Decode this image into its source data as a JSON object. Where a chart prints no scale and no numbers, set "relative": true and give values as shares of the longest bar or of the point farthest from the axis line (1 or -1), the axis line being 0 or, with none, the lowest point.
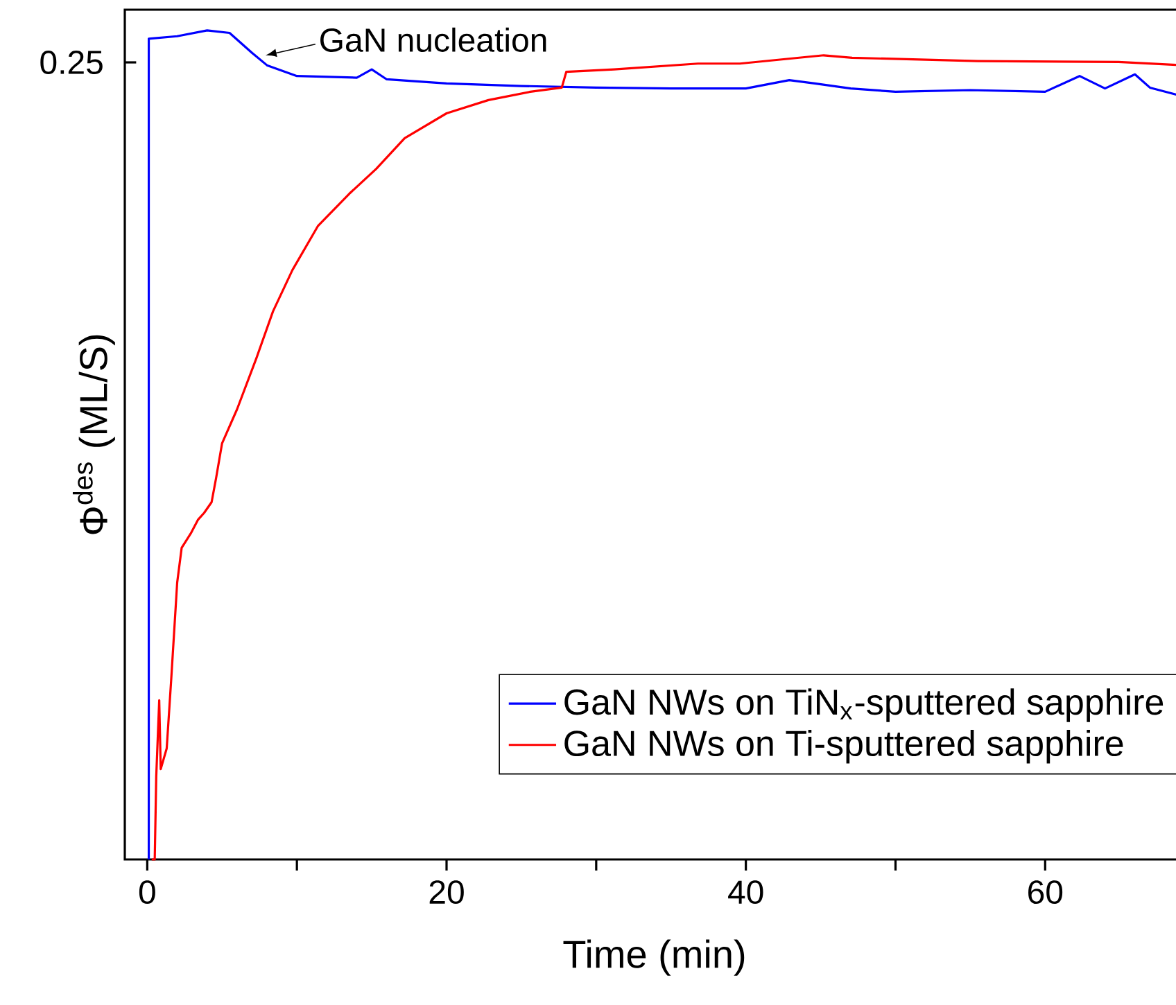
{
  "chart_data": {
    "type": "line",
    "relative": true,
    "xlabel": "Time (min)",
    "ylabel": "Φ$^{des}$ (ML/S)",
    "xlim": [
      -1.5,
      69.3
    ],
    "xticks": [
      0,
      {
        "value": 10,
        "label": null
      },
      20,
      {
        "value": 30,
        "label": null
      },
      40,
      {
        "value": 50,
        "label": null
      },
      60
    ],
    "legend": "bottom right",
    "marker": "none",
    "line_style": "solid",
    "annotations": [
      {
        "text": "GaN nucleation",
        "x": 7.9,
        "y": 0.97
      },
      "0.25"
    ],
    "series": [
      {
        "name": "GaN NWs on TiN$_{x}$-sputtered sapphire",
        "color": "#0000ff",
        "x": [
          0.1,
          0.1,
          2,
          4,
          5.5,
          7,
          8,
          10,
          14,
          15,
          16,
          20,
          25,
          30,
          35,
          40,
          42.9,
          44.6,
          47,
          50,
          55,
          60,
          62.3,
          64,
          66,
          67,
          69.3
        ],
        "values": [
          0,
          0.99,
          0.993,
          1.0,
          0.997,
          0.973,
          0.958,
          0.945,
          0.943,
          0.953,
          0.941,
          0.936,
          0.933,
          0.931,
          0.93,
          0.93,
          0.94,
          0.936,
          0.93,
          0.926,
          0.928,
          0.926,
          0.945,
          0.93,
          0.947,
          0.931,
          0.92
        ]
      },
      {
        "name": "GaN NWs on Ti-sputtered sapphire",
        "color": "#ff0000",
        "x": [
          0.3,
          0.5,
          0.6,
          0.8,
          0.9,
          1.3,
          1.6,
          2.0,
          2.3,
          2.9,
          3.4,
          3.8,
          4.3,
          4.6,
          5.0,
          6.0,
          7.3,
          8.4,
          9.7,
          11.4,
          13.5,
          15.3,
          17.2,
          20,
          22.8,
          25.6,
          27.7,
          28,
          31.2,
          36.8,
          39.6,
          45.2,
          47.1,
          55.5,
          64.9,
          69.3
        ],
        "values": [
          0,
          0,
          0.1,
          0.192,
          0.109,
          0.134,
          0.217,
          0.334,
          0.376,
          0.393,
          0.41,
          0.418,
          0.431,
          0.46,
          0.502,
          0.543,
          0.605,
          0.661,
          0.711,
          0.764,
          0.803,
          0.833,
          0.87,
          0.9,
          0.916,
          0.926,
          0.931,
          0.95,
          0.953,
          0.96,
          0.96,
          0.97,
          0.967,
          0.963,
          0.962,
          0.958
        ]
      }
    ]
  }
}
